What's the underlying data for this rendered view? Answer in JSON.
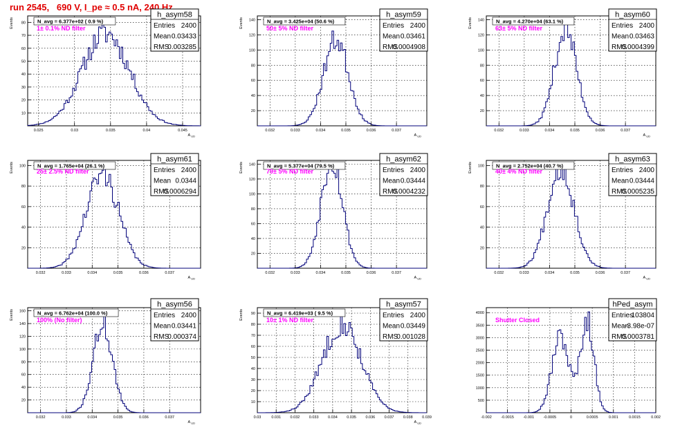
{
  "figure": {
    "title": "run 2545,   690 V, I_pe ≈ 0.5 nA, 240 Hz"
  },
  "chart_data": [
    {
      "type": "histogram",
      "name": "h_asym58",
      "title": "N_avg = 6.377e+02 ( 0.9 %)",
      "annotation": "1± 0.1% ND filter",
      "ylabel": "Events",
      "xlabel": "A_UD",
      "xlim": [
        0.0235,
        0.0475
      ],
      "ylim": [
        0,
        85
      ],
      "xticks": [
        0.025,
        0.03,
        0.035,
        0.04,
        0.045
      ],
      "xticklabels": [
        "0.025",
        "0.03",
        "0.035",
        "0.04",
        "0.045"
      ],
      "yticks": [
        10,
        20,
        30,
        40,
        50,
        60,
        70,
        80
      ],
      "stats": {
        "Entries": "2400",
        "Mean": "0.03433",
        "RMS": "0.003285"
      },
      "grid": true,
      "peak": 80,
      "mean": 0.03433,
      "rms": 0.003285,
      "seed": 11
    },
    {
      "type": "histogram",
      "name": "h_asym59",
      "title": "N_avg = 3.425e+04 (50.6 %)",
      "annotation": "50± 5% ND filter",
      "ylabel": "Events",
      "xlabel": "A_UD",
      "xlim": [
        0.0315,
        0.0382
      ],
      "ylim": [
        0,
        145
      ],
      "xticks": [
        0.032,
        0.033,
        0.034,
        0.035,
        0.036,
        0.037
      ],
      "xticklabels": [
        "0.032",
        "0.033",
        "0.034",
        "0.035",
        "0.036",
        "0.037"
      ],
      "yticks": [
        20,
        40,
        60,
        80,
        100,
        120,
        140
      ],
      "stats": {
        "Entries": "2400",
        "Mean": "0.03461",
        "RMS": "0.0004908"
      },
      "grid": true,
      "peak": 125,
      "mean": 0.03461,
      "rms": 0.0004908,
      "seed": 23
    },
    {
      "type": "histogram",
      "name": "h_asym60",
      "title": "N_avg = 4.270e+04 (63.1 %)",
      "annotation": "63± 5% ND filter",
      "ylabel": "Events",
      "xlabel": "A_UD",
      "xlim": [
        0.0315,
        0.0382
      ],
      "ylim": [
        0,
        145
      ],
      "xticks": [
        0.032,
        0.033,
        0.034,
        0.035,
        0.036,
        0.037
      ],
      "xticklabels": [
        "0.032",
        "0.033",
        "0.034",
        "0.035",
        "0.036",
        "0.037"
      ],
      "yticks": [
        20,
        40,
        60,
        80,
        100,
        120,
        140
      ],
      "stats": {
        "Entries": "2400",
        "Mean": "0.03463",
        "RMS": "0.0004399"
      },
      "grid": true,
      "peak": 140,
      "mean": 0.03463,
      "rms": 0.0004399,
      "seed": 37
    },
    {
      "type": "histogram",
      "name": "h_asym61",
      "title": "N_avg = 1.765e+04 (26.1 %)",
      "annotation": "25± 2.5% ND filter",
      "ylabel": "Events",
      "xlabel": "A_UD",
      "xlim": [
        0.0315,
        0.0382
      ],
      "ylim": [
        0,
        105
      ],
      "xticks": [
        0.032,
        0.033,
        0.034,
        0.035,
        0.036,
        0.037
      ],
      "xticklabels": [
        "0.032",
        "0.033",
        "0.034",
        "0.035",
        "0.036",
        "0.037"
      ],
      "yticks": [
        20,
        40,
        60,
        80,
        100
      ],
      "stats": {
        "Entries": "2400",
        "Mean": "0.0344",
        "RMS": "0.0006294"
      },
      "grid": true,
      "peak": 100,
      "mean": 0.0344,
      "rms": 0.0006294,
      "seed": 41
    },
    {
      "type": "histogram",
      "name": "h_asym62",
      "title": "N_avg = 5.377e+04 (79.5 %)",
      "annotation": "79± 5% ND filter",
      "ylabel": "Events",
      "xlabel": "A_UD",
      "xlim": [
        0.0315,
        0.0382
      ],
      "ylim": [
        0,
        145
      ],
      "xticks": [
        0.032,
        0.033,
        0.034,
        0.035,
        0.036,
        0.037
      ],
      "xticklabels": [
        "0.032",
        "0.033",
        "0.034",
        "0.035",
        "0.036",
        "0.037"
      ],
      "yticks": [
        20,
        40,
        60,
        80,
        100,
        120,
        140
      ],
      "stats": {
        "Entries": "2400",
        "Mean": "0.03444",
        "RMS": "0.0004232"
      },
      "grid": true,
      "peak": 140,
      "mean": 0.03444,
      "rms": 0.0004232,
      "seed": 53
    },
    {
      "type": "histogram",
      "name": "h_asym63",
      "title": "N_avg = 2.752e+04 (40.7 %)",
      "annotation": "40± 4% ND filter",
      "ylabel": "Events",
      "xlabel": "A_UD",
      "xlim": [
        0.0315,
        0.0382
      ],
      "ylim": [
        0,
        105
      ],
      "xticks": [
        0.032,
        0.033,
        0.034,
        0.035,
        0.036,
        0.037
      ],
      "xticklabels": [
        "0.032",
        "0.033",
        "0.034",
        "0.035",
        "0.036",
        "0.037"
      ],
      "yticks": [
        20,
        40,
        60,
        80,
        100
      ],
      "stats": {
        "Entries": "2400",
        "Mean": "0.03444",
        "RMS": "0.0005235"
      },
      "grid": true,
      "peak": 100,
      "mean": 0.03444,
      "rms": 0.0005235,
      "seed": 67
    },
    {
      "type": "histogram",
      "name": "h_asym56",
      "title": "N_avg = 6.762e+04 (100.0 %)",
      "annotation": "100% (No filter)",
      "ylabel": "Events",
      "xlabel": "A_UD",
      "xlim": [
        0.0315,
        0.0382
      ],
      "ylim": [
        0,
        165
      ],
      "xticks": [
        0.032,
        0.033,
        0.034,
        0.035,
        0.036,
        0.037
      ],
      "xticklabels": [
        "0.032",
        "0.033",
        "0.034",
        "0.035",
        "0.036",
        "0.037"
      ],
      "yticks": [
        20,
        40,
        60,
        80,
        100,
        120,
        140,
        160
      ],
      "stats": {
        "Entries": "2400",
        "Mean": "0.03441",
        "RMS": "0.000374"
      },
      "grid": true,
      "peak": 155,
      "mean": 0.03441,
      "rms": 0.000374,
      "seed": 71
    },
    {
      "type": "histogram",
      "name": "h_asym57",
      "title": "N_avg = 6.419e+03 ( 9.5 %)",
      "annotation": "10± 1% ND filter",
      "ylabel": "Events",
      "xlabel": "A_UD",
      "xlim": [
        0.03,
        0.039
      ],
      "ylim": [
        0,
        95
      ],
      "xticks": [
        0.03,
        0.031,
        0.032,
        0.033,
        0.034,
        0.035,
        0.036,
        0.037,
        0.038,
        0.039
      ],
      "xticklabels": [
        "0.03",
        "0.031",
        "0.032",
        "0.033",
        "0.034",
        "0.035",
        "0.036",
        "0.037",
        "0.038",
        "0.039"
      ],
      "yticks": [
        10,
        20,
        30,
        40,
        50,
        60,
        70,
        80,
        90
      ],
      "stats": {
        "Entries": "2400",
        "Mean": "0.03449",
        "RMS": "0.001028"
      },
      "grid": true,
      "peak": 90,
      "mean": 0.03449,
      "rms": 0.001028,
      "seed": 83
    },
    {
      "type": "histogram",
      "name": "hPed_asym",
      "title": "",
      "annotation": "Shutter Closed",
      "ylabel": "",
      "xlabel": "",
      "xlim": [
        -0.002,
        0.002
      ],
      "ylim": [
        0,
        4200
      ],
      "xticks": [
        -0.002,
        -0.0015,
        -0.001,
        -0.0005,
        0,
        0.0005,
        0.001,
        0.0015,
        0.002
      ],
      "xticklabels": [
        "-0.002",
        "-0.0015",
        "-0.001",
        "-0.0005",
        "0",
        "0.0005",
        "0.001",
        "0.0015",
        "0.002"
      ],
      "yticks": [
        500,
        1000,
        1500,
        2000,
        2500,
        3000,
        3500,
        4000
      ],
      "stats": {
        "Entries": "103804",
        "Mean": "-3.98e-07",
        "RMS": "0.0003781"
      },
      "grid": true,
      "bimodal": [
        [
          -0.00025,
          0.0002,
          3300
        ],
        [
          0.00038,
          0.00016,
          4000
        ]
      ],
      "seed": 97
    }
  ]
}
